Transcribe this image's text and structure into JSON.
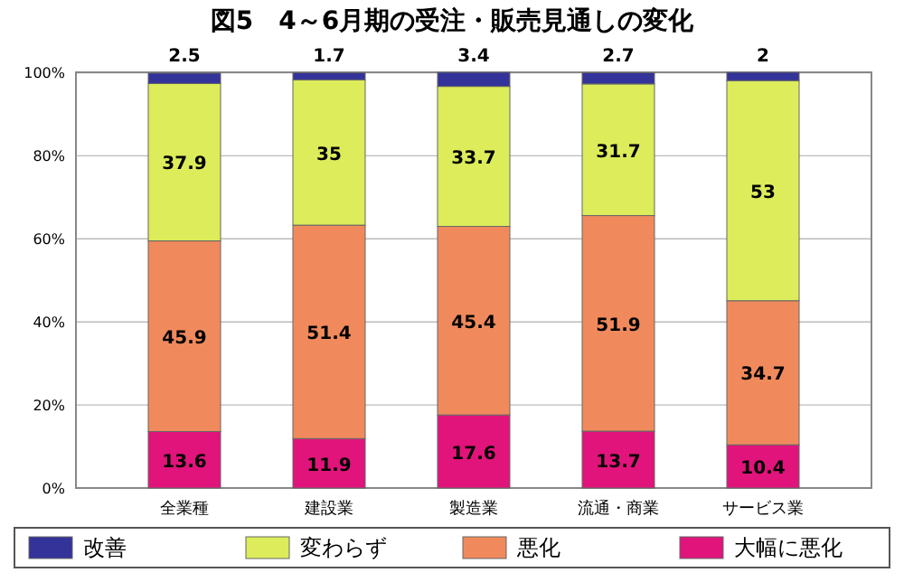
{
  "chart_data": {
    "type": "bar",
    "title": "図5　4～6月期の受注・販売見通しの変化",
    "categories": [
      "全業種",
      "建設業",
      "製造業",
      "流通・商業",
      "サービス業"
    ],
    "stacked": true,
    "data_labels": true,
    "grid": "y",
    "legend": "bottom",
    "ylim": [
      0,
      100.1
    ],
    "yticks": [
      {
        "value": 0,
        "label": "0%"
      },
      {
        "value": 20,
        "label": "20%"
      },
      {
        "value": 40,
        "label": "40%"
      },
      {
        "value": 60,
        "label": "60%"
      },
      {
        "value": 80,
        "label": "80%"
      },
      {
        "value": 100,
        "label": "100%"
      }
    ],
    "series": [
      {
        "name": "大幅に悪化",
        "color": "#e0147a",
        "values": [
          13.6,
          11.9,
          17.6,
          13.7,
          10.4
        ]
      },
      {
        "name": "悪化",
        "color": "#f08a5c",
        "values": [
          45.9,
          51.4,
          45.4,
          51.9,
          34.7
        ]
      },
      {
        "name": "変わらず",
        "color": "#dcec5a",
        "values": [
          37.9,
          35,
          33.7,
          31.7,
          53
        ]
      },
      {
        "name": "改善",
        "color": "#333399",
        "values": [
          2.5,
          1.7,
          3.4,
          2.7,
          2
        ]
      }
    ]
  }
}
